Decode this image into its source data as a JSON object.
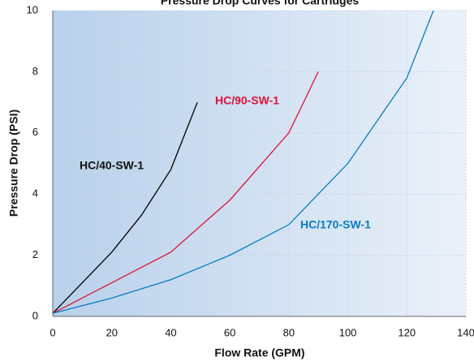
{
  "chart_data": {
    "type": "line",
    "title": "Pressure Drop Curves for Cartridges",
    "x_label": "Flow Rate (GPM)",
    "y_label": "Pressure Drop (PSI)",
    "xlim": [
      0,
      140
    ],
    "ylim": [
      0,
      10
    ],
    "xticks": [
      0,
      20,
      40,
      60,
      80,
      100,
      120,
      140
    ],
    "yticks": [
      0,
      2,
      4,
      6,
      8,
      10
    ],
    "grid": true,
    "series": [
      {
        "name": "HC/40-SW-1",
        "color": "#000000",
        "x": [
          0,
          10,
          20,
          30,
          40,
          49
        ],
        "values": [
          0.1,
          1.1,
          2.1,
          3.3,
          4.8,
          7.0
        ]
      },
      {
        "name": "HC/90-SW-1",
        "color": "#e0123a",
        "x": [
          0,
          20,
          40,
          60,
          80,
          90
        ],
        "values": [
          0.1,
          1.1,
          2.1,
          3.8,
          6.0,
          8.0
        ]
      },
      {
        "name": "HC/170-SW-1",
        "color": "#0a7cc4",
        "x": [
          0,
          20,
          40,
          60,
          80,
          100,
          120,
          129
        ],
        "values": [
          0.1,
          0.6,
          1.2,
          2.0,
          3.0,
          5.0,
          7.8,
          10
        ]
      }
    ]
  }
}
